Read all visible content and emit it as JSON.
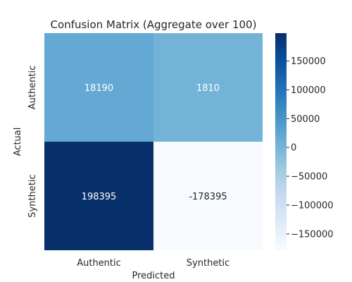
{
  "chart_data": {
    "type": "heatmap",
    "title": "Confusion Matrix (Aggregate over 100)",
    "xlabel": "Predicted",
    "ylabel": "Actual",
    "x_categories": [
      "Authentic",
      "Synthetic"
    ],
    "y_categories": [
      "Authentic",
      "Synthetic"
    ],
    "values": [
      [
        18190,
        1810
      ],
      [
        198395,
        -178395
      ]
    ],
    "colormap": "Blues",
    "color_range": [
      -178395,
      198395
    ],
    "colorbar": {
      "ticks": [
        150000,
        100000,
        50000,
        0,
        -50000,
        -100000,
        -150000
      ],
      "tick_labels": [
        "150000",
        "100000",
        "50000",
        "0",
        "−50000",
        "−100000",
        "−150000"
      ]
    }
  }
}
